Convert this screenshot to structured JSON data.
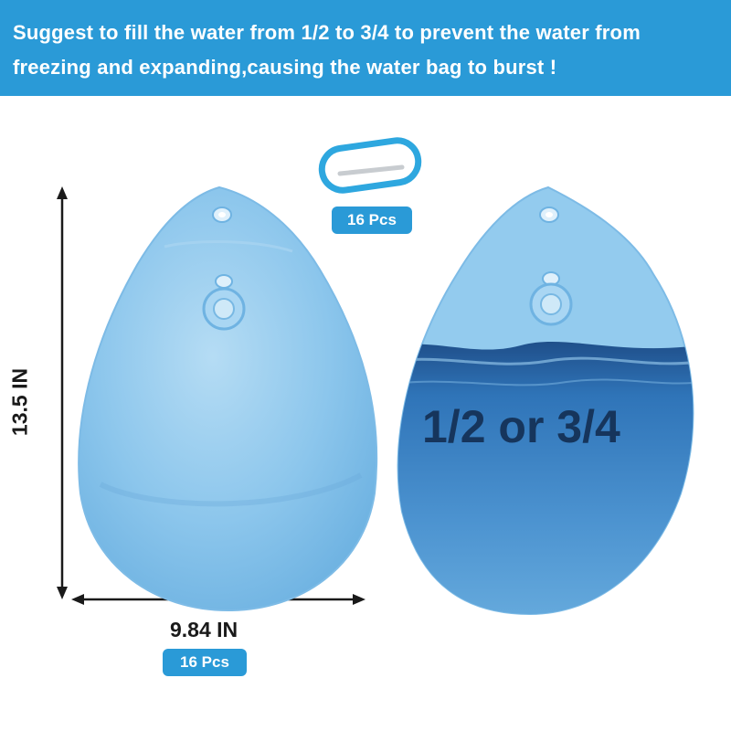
{
  "banner": {
    "line1": "Suggest to fill the water from 1/2 to 3/4 to prevent the water from",
    "line2": "freezing and expanding,causing the water bag to burst !"
  },
  "carabiner_qty": "16 Pcs",
  "bag_qty": "16 Pcs",
  "dimensions": {
    "height": "13.5 IN",
    "width": "9.84 IN"
  },
  "fill_label": "1/2 or 3/4",
  "colors": {
    "banner": "#2a9ad7",
    "bag": "#8cc6ec",
    "water": "#2f74b8",
    "carabiner": "#2ea7df"
  }
}
